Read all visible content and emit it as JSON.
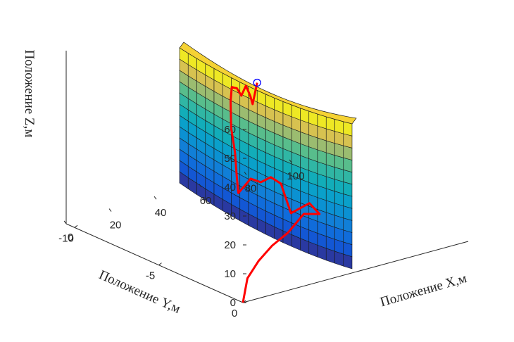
{
  "chart_data": {
    "type": "surface3d",
    "axes": {
      "x": {
        "label": "Положение X,м",
        "ticks": [
          0,
          20,
          40,
          60,
          80,
          100
        ],
        "range": [
          0,
          100
        ]
      },
      "y": {
        "label": "Положение Y,м",
        "ticks": [
          0,
          -5,
          -10
        ],
        "range": [
          -10.5,
          0
        ]
      },
      "z": {
        "label": "Положение Z,м",
        "ticks": [
          0,
          10,
          20,
          30,
          40,
          50,
          60
        ],
        "range": [
          0,
          60
        ]
      }
    },
    "surface": {
      "shape": "curved vertical wall",
      "z_range": [
        0,
        60
      ],
      "colormap": "parula",
      "color_by": "z"
    },
    "series": [
      {
        "color": "#ff0000",
        "line": [
          [
            0,
            0,
            0
          ],
          [
            2,
            0,
            8
          ],
          [
            7,
            0,
            13
          ],
          [
            13,
            0,
            17
          ],
          [
            20,
            0,
            20
          ],
          [
            27,
            0,
            25
          ],
          [
            34,
            0,
            23.5
          ],
          [
            37,
            -1,
            24
          ],
          [
            40,
            -2.5,
            16
          ],
          [
            43,
            -3.5,
            23
          ],
          [
            46,
            -4.5,
            22
          ],
          [
            49,
            -5.5,
            17
          ],
          [
            52,
            -6.5,
            15
          ],
          [
            54,
            -7.5,
            7
          ],
          [
            57,
            -8,
            11
          ],
          [
            60,
            -8.5,
            17
          ],
          [
            62,
            -9,
            24
          ],
          [
            64,
            -9.3,
            32
          ],
          [
            66,
            -9.5,
            36
          ],
          [
            68,
            -9.6,
            35
          ],
          [
            70,
            -9.8,
            34
          ],
          [
            72,
            -10,
            33
          ],
          [
            74,
            -10,
            30
          ],
          [
            76,
            -10,
            33
          ],
          [
            78,
            -10,
            29
          ],
          [
            79,
            -10,
            26
          ],
          [
            81,
            -10,
            33
          ]
        ],
        "marker_end": {
          "shape": "circle",
          "color": "#0000ff"
        }
      }
    ],
    "grid": false
  }
}
